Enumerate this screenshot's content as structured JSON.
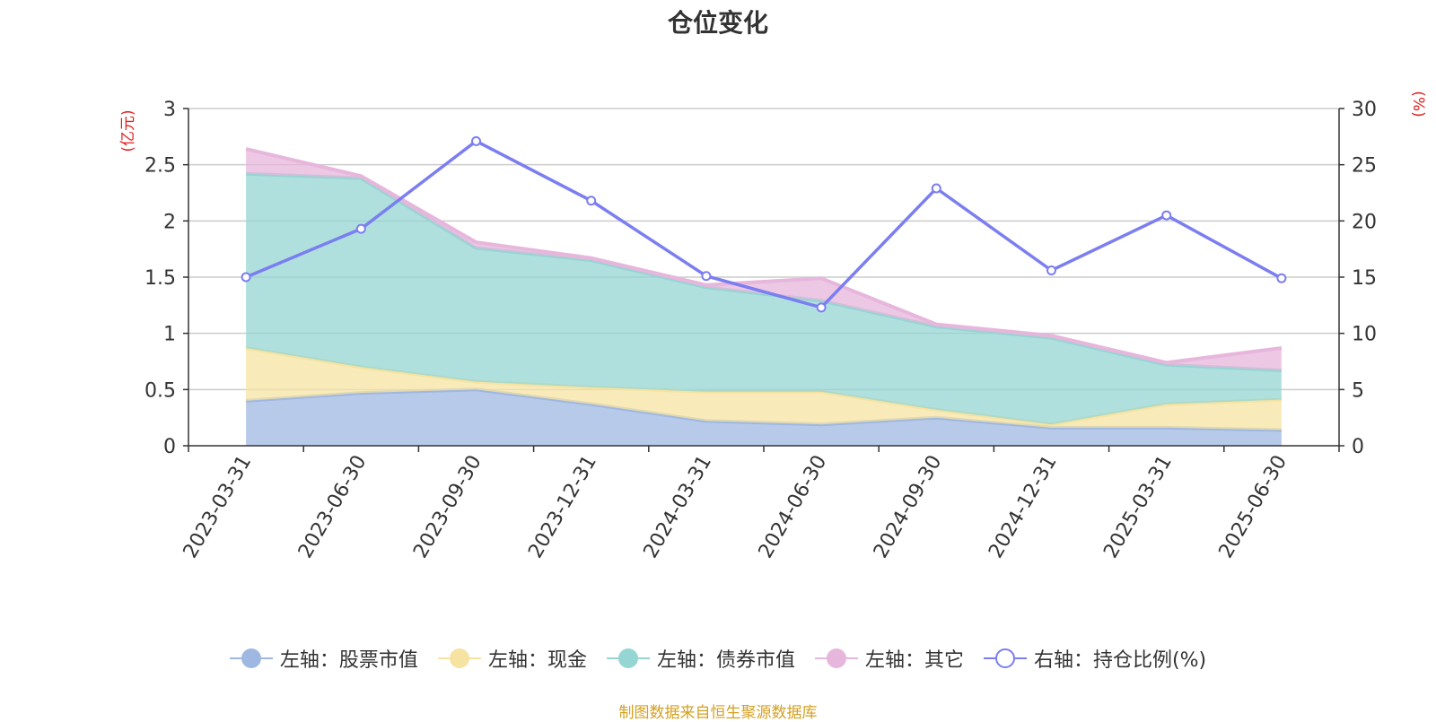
{
  "chart_data": {
    "type": "area",
    "title": "仓位变化",
    "categories": [
      "2023-03-31",
      "2023-06-30",
      "2023-09-30",
      "2023-12-31",
      "2024-03-31",
      "2024-06-30",
      "2024-09-30",
      "2024-12-31",
      "2025-03-31",
      "2025-06-30"
    ],
    "left_axis": {
      "unit_label": "(亿元)",
      "ylim": [
        0,
        3
      ],
      "ticks": [
        "0",
        "0.5",
        "1",
        "1.5",
        "2",
        "2.5",
        "3"
      ]
    },
    "right_axis": {
      "unit_label": "(%)",
      "ylim": [
        0,
        30
      ],
      "ticks": [
        "0",
        "5",
        "10",
        "15",
        "20",
        "25",
        "30"
      ]
    },
    "stacked_series": [
      {
        "name": "左轴：股票市值",
        "axis": "left",
        "color": "#9fb8e2",
        "values": [
          0.4,
          0.47,
          0.5,
          0.37,
          0.22,
          0.19,
          0.25,
          0.16,
          0.16,
          0.14
        ]
      },
      {
        "name": "左轴：现金",
        "axis": "left",
        "color": "#f6e3a1",
        "values": [
          0.47,
          0.23,
          0.07,
          0.15,
          0.26,
          0.29,
          0.07,
          0.03,
          0.21,
          0.27
        ]
      },
      {
        "name": "左轴：债券市值",
        "axis": "left",
        "color": "#95d5d3",
        "values": [
          1.55,
          1.68,
          1.19,
          1.13,
          0.93,
          0.81,
          0.74,
          0.77,
          0.35,
          0.26
        ]
      },
      {
        "name": "左轴：其它",
        "axis": "left",
        "color": "#e7b6dc",
        "values": [
          0.22,
          0.02,
          0.05,
          0.02,
          0.02,
          0.2,
          0.02,
          0.02,
          0.02,
          0.2
        ]
      }
    ],
    "line_series": [
      {
        "name": "右轴：持仓比例(%)",
        "axis": "right",
        "color": "#7b7ef0",
        "values": [
          15.0,
          19.3,
          27.1,
          21.8,
          15.1,
          12.3,
          22.9,
          15.6,
          20.5,
          14.9
        ]
      }
    ],
    "grid": true,
    "legend_position": "bottom"
  },
  "source_note": "制图数据来自恒生聚源数据库"
}
